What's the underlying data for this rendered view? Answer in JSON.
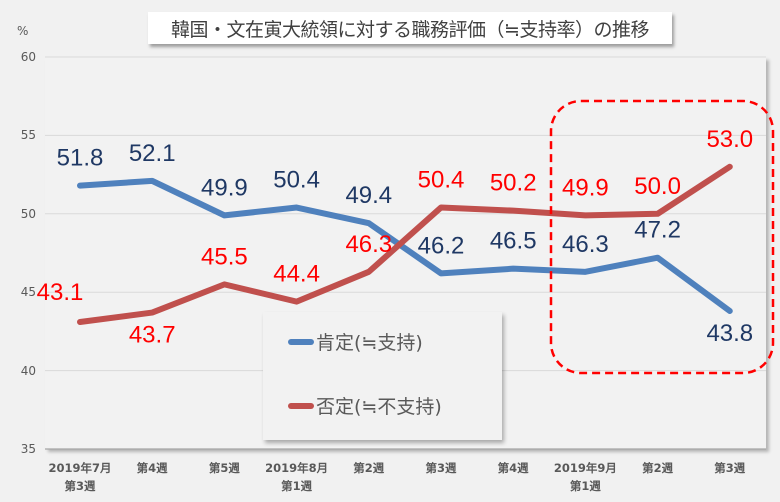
{
  "title": "韓国・文在寅大統領に対する職務評価（≒支持率）の推移",
  "y_unit": "%",
  "colors": {
    "positive": "#4f81bd",
    "negative": "#c0504d",
    "positive_label": "#1f3864",
    "negative_label": "#ff0000",
    "highlight_box": "#ff0000",
    "grid": "#d9d9d9"
  },
  "legend": {
    "items": [
      {
        "label": "肯定(≒支持)",
        "color": "#4f81bd"
      },
      {
        "label": "否定(≒不支持)",
        "color": "#c0504d"
      }
    ]
  },
  "chart_data": {
    "type": "line",
    "title": "韓国・文在寅大統領に対する職務評価（≒支持率）の推移",
    "xlabel": "",
    "ylabel": "%",
    "ylim": [
      35,
      60
    ],
    "yticks": [
      35,
      40,
      45,
      50,
      55,
      60
    ],
    "grid": true,
    "legend_position": "inside-bottom-center",
    "categories": [
      "2019年7月 第3週",
      "第4週",
      "第5週",
      "2019年8月 第1週",
      "第2週",
      "第3週",
      "第4週",
      "2019年9月 第1週",
      "第2週",
      "第3週"
    ],
    "category_lines": [
      [
        "2019年7月",
        "第3週"
      ],
      [
        "第4週"
      ],
      [
        "第5週"
      ],
      [
        "2019年8月",
        "第1週"
      ],
      [
        "第2週"
      ],
      [
        "第3週"
      ],
      [
        "第4週"
      ],
      [
        "2019年9月",
        "第1週"
      ],
      [
        "第2週"
      ],
      [
        "第3週"
      ]
    ],
    "series": [
      {
        "name": "肯定(≒支持)",
        "values": [
          51.8,
          52.1,
          49.9,
          50.4,
          49.4,
          46.2,
          46.5,
          46.3,
          47.2,
          43.8
        ]
      },
      {
        "name": "否定(≒不支持)",
        "values": [
          43.1,
          43.7,
          45.5,
          44.4,
          46.3,
          50.4,
          50.2,
          49.9,
          50.0,
          53.0
        ]
      }
    ],
    "annotations": [
      {
        "type": "dashed-rounded-box",
        "covers_categories": [
          "2019年9月 第1週",
          "第2週",
          "第3週"
        ]
      }
    ]
  }
}
